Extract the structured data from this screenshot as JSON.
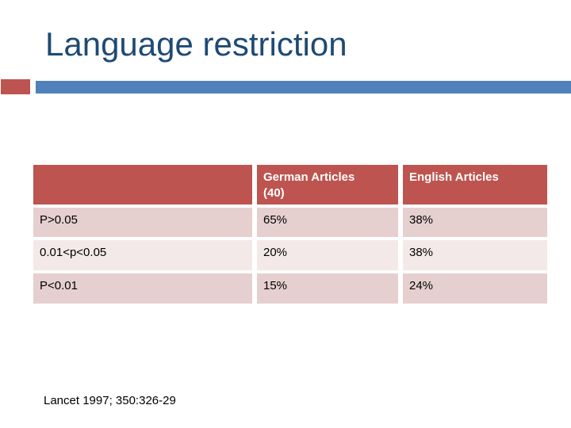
{
  "slide": {
    "title": "Language restriction",
    "citation": "Lancet 1997; 350:326-29"
  },
  "colors": {
    "title_text": "#1F4A73",
    "accent_red": "#BE544F",
    "accent_blue": "#5181BA",
    "header_bg": "#BE544F",
    "header_text": "#FFFFFF",
    "band_dark": "#E5D0CF",
    "band_light": "#F3E9E8",
    "body_text": "#000000"
  },
  "table": {
    "header": {
      "row_label": "",
      "german": "German Articles",
      "german_count": "(40)",
      "english": "English Articles"
    },
    "rows": [
      {
        "label": "P>0.05",
        "german": "65%",
        "english": "38%"
      },
      {
        "label": "0.01<p<0.05",
        "german": "20%",
        "english": "38%"
      },
      {
        "label": "P<0.01",
        "german": "15%",
        "english": "24%"
      }
    ]
  }
}
